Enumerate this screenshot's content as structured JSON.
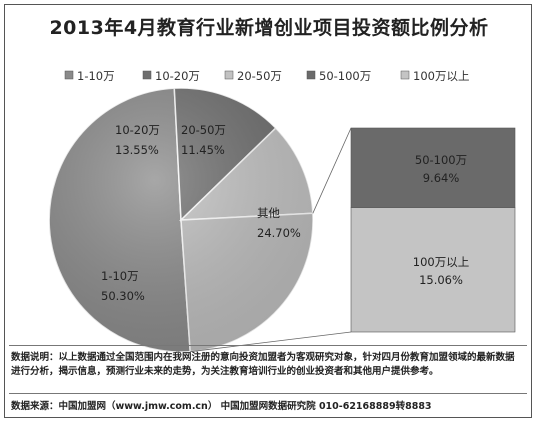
{
  "chart_data": {
    "type": "pie",
    "title": "2013年4月教育行业新增创业项目投资额比例分析",
    "legend": [
      "1-10万",
      "10-20万",
      "20-50万",
      "50-100万",
      "100万以上"
    ],
    "legend_position": "top",
    "slices": [
      {
        "label": "1-10万",
        "value": 50.3,
        "display": "50.30%",
        "color": "#8a8a8a"
      },
      {
        "label": "10-20万",
        "value": 13.55,
        "display": "13.55%",
        "color": "#6e6e6e"
      },
      {
        "label": "20-50万",
        "value": 11.45,
        "display": "11.45%",
        "color": "#c2c2c2"
      },
      {
        "label": "其他",
        "value": 24.7,
        "display": "24.70%",
        "color": "#bdbdbd"
      }
    ],
    "breakout": [
      {
        "label": "50-100万",
        "value": 9.64,
        "display": "9.64%",
        "color": "#6a6a6a"
      },
      {
        "label": "100万以上",
        "value": 15.06,
        "display": "15.06%",
        "color": "#c4c4c4"
      }
    ],
    "legend_colors": [
      "#8a8a8a",
      "#6e6e6e",
      "#c2c2c2",
      "#6a6a6a",
      "#c4c4c4"
    ]
  },
  "notes": "数据说明：以上数据通过全国范围内在我网注册的意向投资加盟者为客观研究对象，针对四月份教育加盟领域的最新数据进行分析，揭示信息，预测行业未来的走势，为关注教育培训行业的创业投资者和其他用户提供参考。",
  "source": "数据来源：中国加盟网（www.jmw.com.cn）  中国加盟网数据研究院    010-62168889转8883"
}
